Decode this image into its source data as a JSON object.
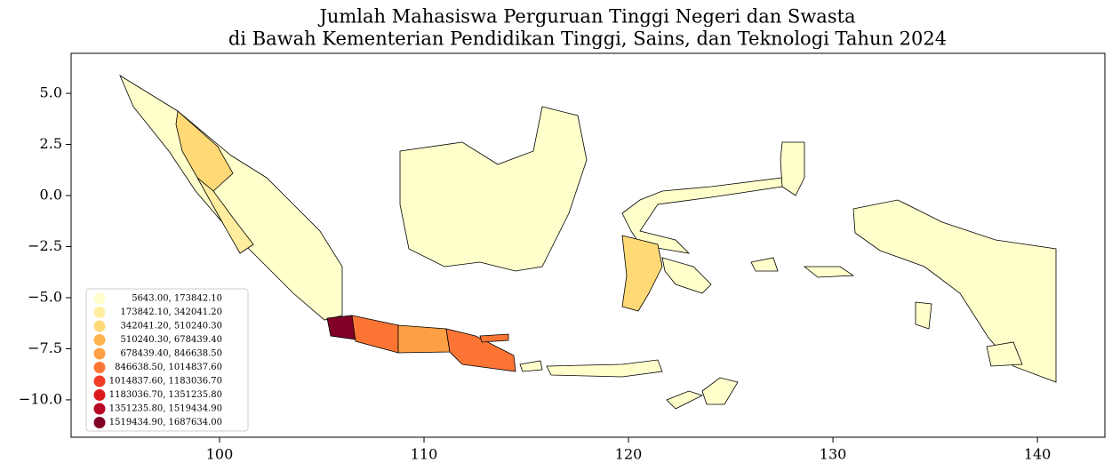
{
  "chart_data": {
    "type": "choropleth",
    "title": [
      "Jumlah Mahasiswa Perguruan Tinggi Negeri dan Swasta",
      "di Bawah Kementerian Pendidikan Tinggi, Sains, dan Teknologi Tahun 2024"
    ],
    "xlim": [
      92.74,
      143.3
    ],
    "ylim": [
      -11.83,
      6.96
    ],
    "xticks": [
      100,
      110,
      120,
      130,
      140
    ],
    "yticks": [
      {
        "value": 5,
        "label": "5.0"
      },
      {
        "value": 2.5,
        "label": "2.5"
      },
      {
        "value": 0,
        "label": "0.0"
      },
      {
        "value": -2.5,
        "label": "−2.5"
      },
      {
        "value": -5,
        "label": "−5.0"
      },
      {
        "value": -7.5,
        "label": "−7.5"
      },
      {
        "value": -10,
        "label": "−10.0"
      }
    ],
    "legend": {
      "loc": "lower left",
      "entries": [
        {
          "label": "5643.00,  173842.10",
          "color": "#ffffcc"
        },
        {
          "label": "173842.10,  342041.20",
          "color": "#ffeda0"
        },
        {
          "label": "342041.20,  510240.30",
          "color": "#fed976"
        },
        {
          "label": "510240.30,  678439.40",
          "color": "#feb24c"
        },
        {
          "label": "678439.40,  846638.50",
          "color": "#fd9f44"
        },
        {
          "label": "846638.50, 1014837.60",
          "color": "#fd7535"
        },
        {
          "label": "1014837.60, 1183036.70",
          "color": "#f13d27"
        },
        {
          "label": "1183036.70, 1351235.80",
          "color": "#db1a1e"
        },
        {
          "label": "1351235.80, 1519434.90",
          "color": "#b90826"
        },
        {
          "label": "1519434.90, 1687634.00",
          "color": "#800026"
        }
      ]
    }
  }
}
